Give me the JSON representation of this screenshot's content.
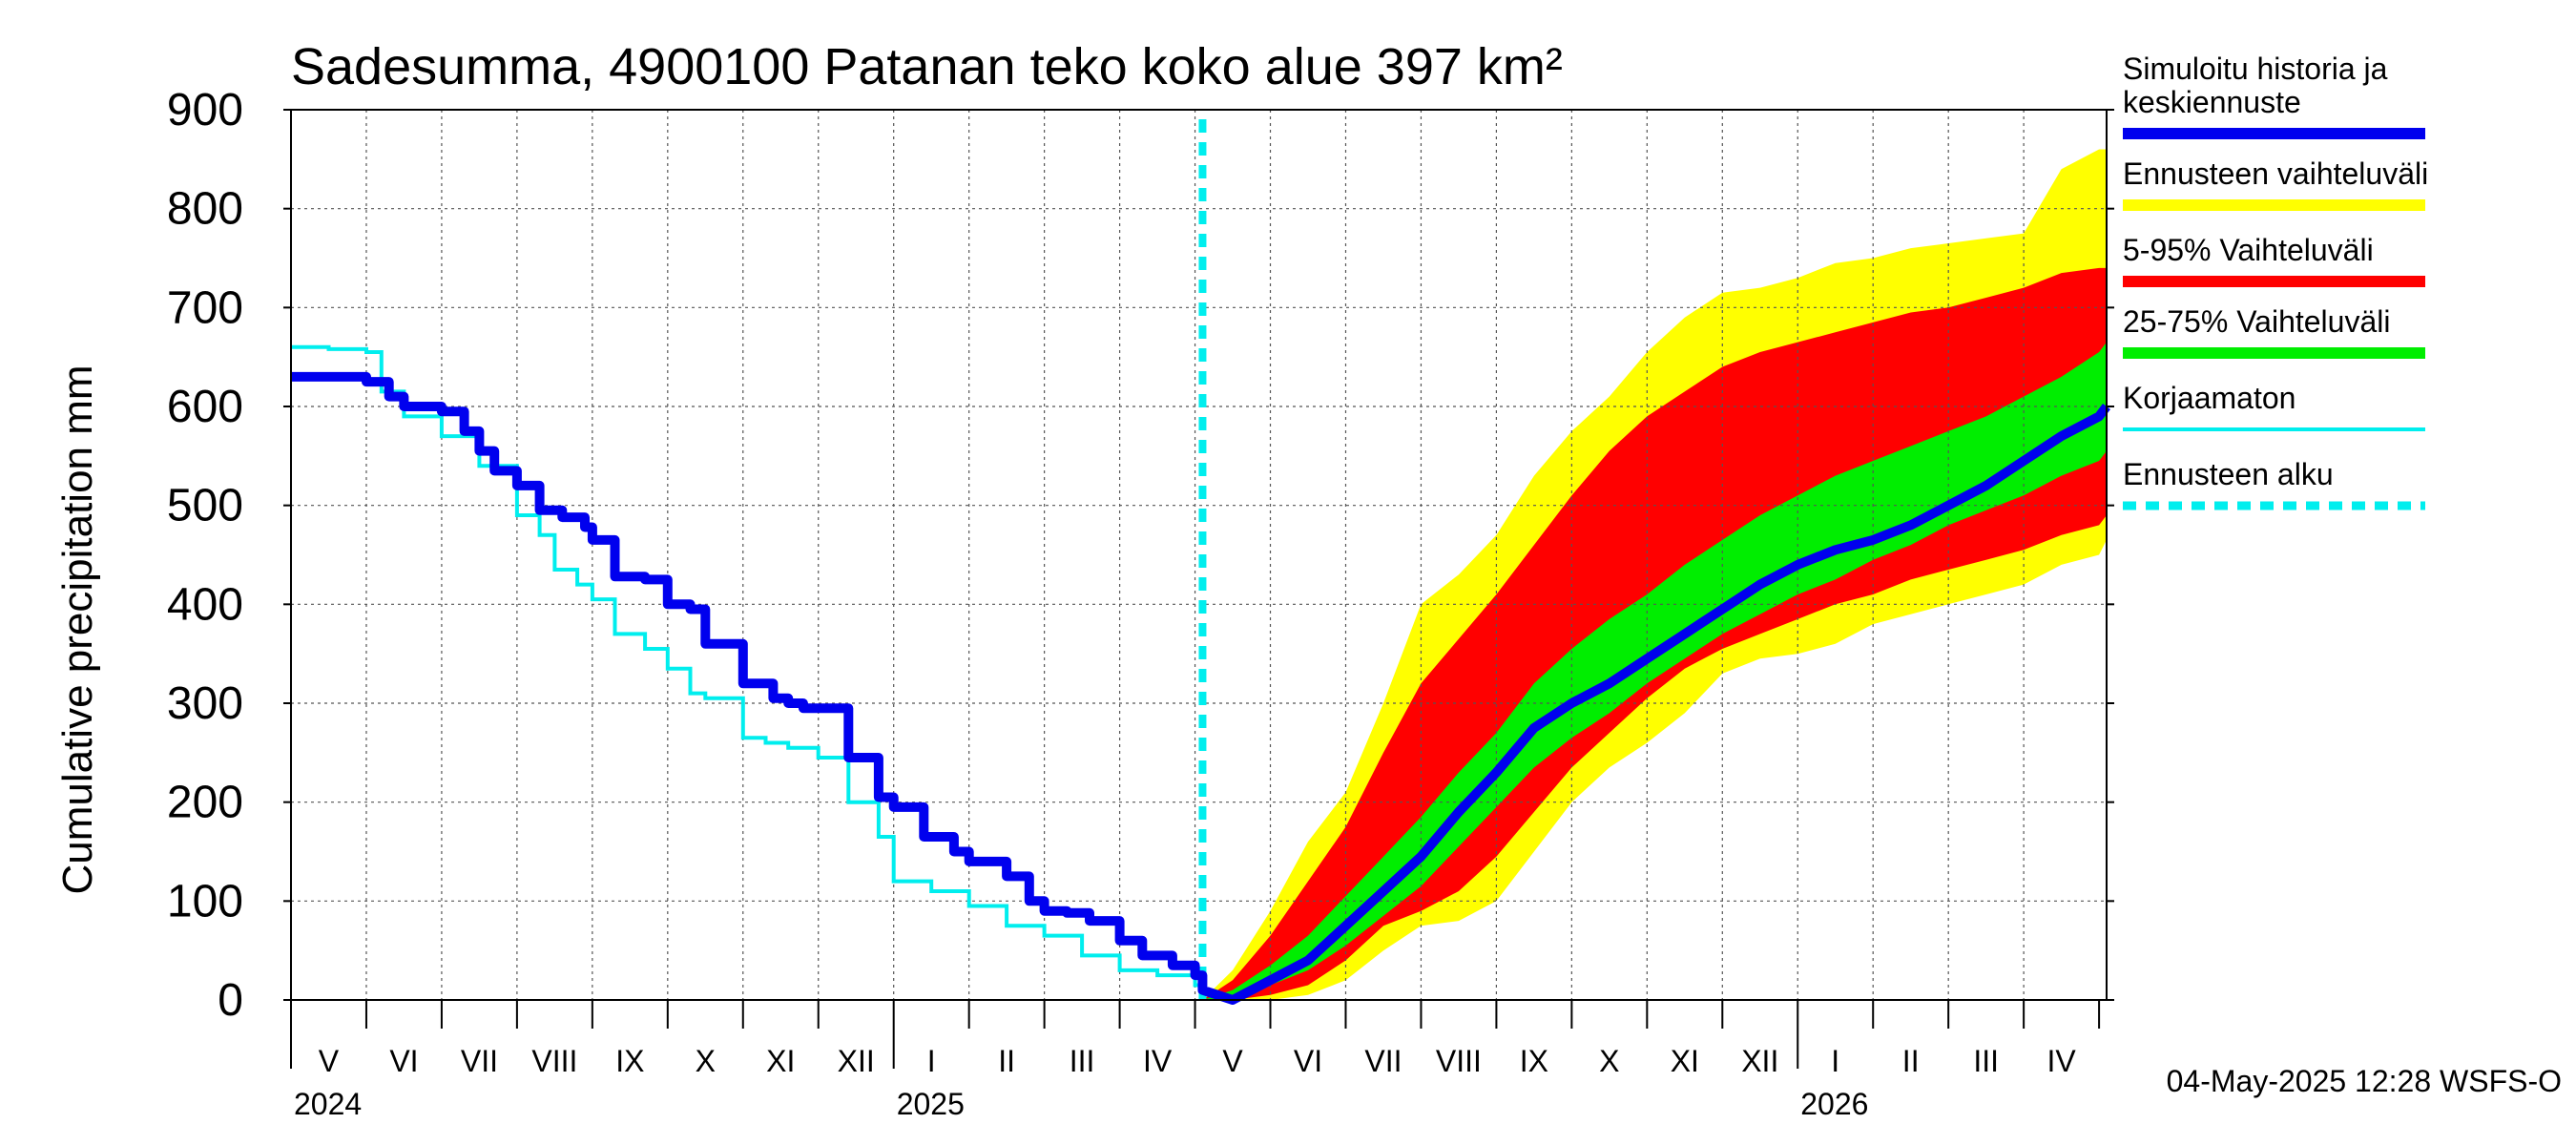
{
  "chart_data": {
    "type": "area",
    "title": "Sadesumma, 4900100 Patanan teko koko alue 397 km²",
    "ylabel": "Cumulative precipitation   mm",
    "xlabel": "",
    "ylim": [
      0,
      900
    ],
    "yticks": [
      0,
      100,
      200,
      300,
      400,
      500,
      600,
      700,
      800,
      900
    ],
    "x_unit": "months since 2024-05-01",
    "xlim": [
      0,
      24.1
    ],
    "month_labels": [
      "V",
      "VI",
      "VII",
      "VIII",
      "IX",
      "X",
      "XI",
      "XII",
      "I",
      "II",
      "III",
      "IV",
      "V",
      "VI",
      "VII",
      "VIII",
      "IX",
      "X",
      "XI",
      "XII",
      "I",
      "II",
      "III",
      "IV"
    ],
    "year_labels": [
      {
        "label": "2024",
        "x": 0
      },
      {
        "label": "2025",
        "x": 8
      },
      {
        "label": "2026",
        "x": 20
      }
    ],
    "forecast_start": 12.1,
    "grid": true,
    "series": [
      {
        "name": "Simuloitu historia ja keskiennuste",
        "color": "#0000ee",
        "style": "thick-line",
        "x": [
          0,
          0.3,
          0.6,
          0.9,
          1.0,
          1.3,
          1.5,
          2.0,
          2.3,
          2.5,
          2.7,
          3.0,
          3.3,
          3.6,
          3.9,
          4.0,
          4.3,
          4.7,
          5.0,
          5.3,
          5.5,
          6.0,
          6.4,
          6.6,
          6.8,
          7.0,
          7.4,
          7.8,
          8.0,
          8.4,
          8.8,
          9.0,
          9.5,
          9.8,
          10.0,
          10.3,
          10.6,
          11.0,
          11.3,
          11.7,
          12.0,
          12.1,
          12.5,
          13.0,
          13.5,
          14.0,
          14.5,
          15.0,
          15.5,
          16.0,
          16.5,
          17.0,
          17.5,
          18.0,
          18.5,
          19.0,
          19.5,
          20.0,
          20.5,
          21.0,
          21.5,
          22.0,
          22.5,
          23.0,
          23.5,
          24.0,
          24.1
        ],
        "values": [
          630,
          630,
          630,
          630,
          625,
          610,
          600,
          595,
          575,
          555,
          535,
          520,
          495,
          488,
          478,
          465,
          428,
          425,
          400,
          395,
          360,
          320,
          305,
          300,
          295,
          295,
          245,
          205,
          195,
          165,
          150,
          140,
          125,
          100,
          90,
          88,
          80,
          60,
          45,
          35,
          25,
          10,
          0,
          20,
          40,
          75,
          110,
          145,
          190,
          230,
          275,
          300,
          320,
          345,
          370,
          395,
          420,
          440,
          455,
          465,
          480,
          500,
          520,
          545,
          570,
          590,
          600
        ]
      },
      {
        "name": "Korjaamaton",
        "color": "#00eeee",
        "style": "thin-line",
        "x": [
          0,
          0.5,
          1.0,
          1.2,
          1.5,
          2.0,
          2.5,
          3.0,
          3.3,
          3.5,
          3.8,
          4.0,
          4.3,
          4.7,
          5.0,
          5.3,
          5.5,
          6.0,
          6.3,
          6.6,
          7.0,
          7.4,
          7.8,
          8.0,
          8.5,
          9.0,
          9.5,
          10.0,
          10.5,
          11.0,
          11.5,
          12.0,
          12.1
        ],
        "values": [
          660,
          658,
          655,
          615,
          590,
          570,
          540,
          490,
          470,
          435,
          420,
          405,
          370,
          355,
          335,
          310,
          305,
          265,
          260,
          255,
          245,
          200,
          165,
          120,
          110,
          95,
          75,
          65,
          45,
          30,
          25,
          15,
          10
        ]
      }
    ],
    "bands": [
      {
        "name": "Ennusteen vaihteluväli",
        "color": "#ffff00",
        "x": [
          12.1,
          12.5,
          13,
          13.5,
          14,
          14.5,
          15,
          15.5,
          16,
          16.5,
          17,
          17.5,
          18,
          18.5,
          19,
          19.5,
          20,
          20.5,
          21,
          21.5,
          22,
          22.5,
          23,
          23.5,
          24,
          24.1
        ],
        "upper": [
          0,
          30,
          90,
          160,
          210,
          300,
          400,
          430,
          470,
          530,
          575,
          610,
          655,
          690,
          715,
          720,
          730,
          745,
          750,
          760,
          765,
          770,
          775,
          840,
          860,
          860
        ],
        "lower": [
          0,
          0,
          0,
          5,
          20,
          50,
          75,
          80,
          100,
          150,
          200,
          235,
          260,
          290,
          330,
          345,
          350,
          360,
          380,
          390,
          400,
          410,
          420,
          440,
          450,
          465
        ]
      },
      {
        "name": "5-95% Vaihteluväli",
        "color": "#ff0000",
        "x": [
          12.1,
          12.5,
          13,
          13.5,
          14,
          14.5,
          15,
          15.5,
          16,
          16.5,
          17,
          17.5,
          18,
          18.5,
          19,
          19.5,
          20,
          20.5,
          21,
          21.5,
          22,
          22.5,
          23,
          23.5,
          24,
          24.1
        ],
        "upper": [
          0,
          20,
          65,
          120,
          175,
          250,
          320,
          365,
          410,
          460,
          510,
          555,
          590,
          615,
          640,
          655,
          665,
          675,
          685,
          695,
          700,
          710,
          720,
          735,
          740,
          740
        ],
        "lower": [
          0,
          0,
          5,
          15,
          40,
          75,
          90,
          110,
          145,
          190,
          235,
          270,
          305,
          335,
          355,
          370,
          385,
          400,
          410,
          425,
          435,
          445,
          455,
          470,
          480,
          490
        ]
      },
      {
        "name": "25-75% Vaihteluväli",
        "color": "#00ee00",
        "x": [
          12.1,
          12.5,
          13,
          13.5,
          14,
          14.5,
          15,
          15.5,
          16,
          16.5,
          17,
          17.5,
          18,
          18.5,
          19,
          19.5,
          20,
          20.5,
          21,
          21.5,
          22,
          22.5,
          23,
          23.5,
          24,
          24.1
        ],
        "upper": [
          0,
          10,
          35,
          65,
          105,
          145,
          185,
          230,
          270,
          320,
          355,
          385,
          410,
          440,
          465,
          490,
          510,
          530,
          545,
          560,
          575,
          590,
          610,
          630,
          655,
          665
        ],
        "lower": [
          0,
          0,
          15,
          30,
          55,
          85,
          115,
          155,
          195,
          235,
          265,
          290,
          320,
          345,
          370,
          390,
          410,
          425,
          445,
          460,
          480,
          495,
          510,
          530,
          545,
          555
        ]
      }
    ],
    "legend": [
      {
        "label": "Simuloitu historia ja keskiennuste",
        "label_lines": [
          "Simuloitu historia ja",
          "keskiennuste"
        ],
        "color": "#0000ee",
        "style": "solid"
      },
      {
        "label": "Ennusteen vaihteluväli",
        "label_lines": [
          "Ennusteen vaihteluväli"
        ],
        "color": "#ffff00",
        "style": "solid"
      },
      {
        "label": "5-95% Vaihteluväli",
        "label_lines": [
          "5-95% Vaihteluväli"
        ],
        "color": "#ff0000",
        "style": "solid"
      },
      {
        "label": "25-75% Vaihteluväli",
        "label_lines": [
          "25-75% Vaihteluväli"
        ],
        "color": "#00ee00",
        "style": "solid"
      },
      {
        "label": "Korjaamaton",
        "label_lines": [
          "Korjaamaton"
        ],
        "color": "#00eeee",
        "style": "thin"
      },
      {
        "label": "Ennusteen alku",
        "label_lines": [
          "Ennusteen alku"
        ],
        "color": "#00eeee",
        "style": "dashed"
      }
    ],
    "legend_position": "right",
    "footer_stamp": "04-May-2025 12:28 WSFS-O"
  }
}
